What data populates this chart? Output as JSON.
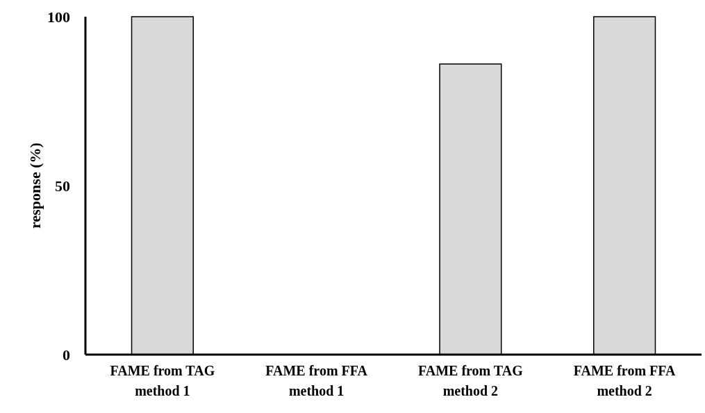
{
  "chart_data": {
    "type": "bar",
    "ylabel": "response (%)",
    "categories": [
      "FAME from TAG\nmethod 1",
      "FAME from FFA\nmethod 1",
      "FAME from TAG\nmethod 2",
      "FAME from FFA\nmethod 2"
    ],
    "values": [
      100,
      0,
      86,
      100
    ],
    "color": "#d9d9d9",
    "ylim": [
      0,
      100
    ],
    "yticks": [
      0,
      50,
      100
    ],
    "grid": false
  }
}
